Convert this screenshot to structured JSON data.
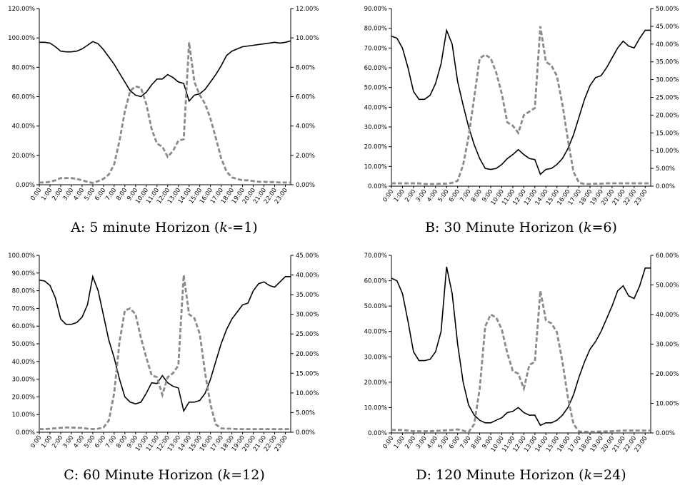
{
  "hours": [
    "0:00",
    "1:00",
    "2:00",
    "3:00",
    "4:00",
    "5:00",
    "6:00",
    "7:00",
    "8:00",
    "9:00",
    "10:00",
    "11:00",
    "12:00",
    "13:00",
    "14:00",
    "15:00",
    "16:00",
    "17:00",
    "18:00",
    "19:00",
    "20:00",
    "21:00",
    "22:00",
    "23:00"
  ],
  "chart_data": [
    {
      "id": "A",
      "type": "line",
      "caption": {
        "pre": "A: 5 minute Horizon (",
        "k": "k",
        "post": "-=1)"
      },
      "y_left_ticks": [
        "0.00%",
        "20.00%",
        "40.00%",
        "60.00%",
        "80.00%",
        "100.00%",
        "120.00%"
      ],
      "y_right_ticks": [
        "0.00%",
        "2.00%",
        "4.00%",
        "6.00%",
        "8.00%",
        "10.00%",
        "12.00%"
      ],
      "y_left_lim": [
        0,
        120
      ],
      "y_right_lim": [
        0,
        12
      ],
      "series": [
        {
          "style": "solid",
          "axis": "left",
          "x": [
            0,
            0.5,
            1,
            1.5,
            2,
            2.5,
            3,
            3.5,
            4,
            4.5,
            5,
            5.5,
            6,
            6.5,
            7,
            7.5,
            8,
            8.5,
            9,
            9.5,
            10,
            10.5,
            11,
            11.5,
            12,
            12.5,
            13,
            13.5,
            14,
            14.5,
            15,
            15.5,
            16,
            16.5,
            17,
            17.5,
            18,
            18.5,
            19,
            19.5,
            20,
            20.5,
            21,
            21.5,
            22,
            22.5,
            23,
            23.5
          ],
          "y": [
            97,
            97,
            96.5,
            94,
            91,
            90.5,
            90.5,
            91,
            92.5,
            95,
            97.5,
            96,
            92,
            87,
            82,
            76,
            70,
            64,
            61,
            60,
            63,
            68,
            72,
            72,
            75,
            73,
            70,
            69,
            57,
            61,
            62,
            65,
            70,
            75,
            81,
            88,
            91,
            92.5,
            94,
            94.5,
            95,
            95.5,
            96,
            96.5,
            97,
            96.5,
            97,
            98
          ]
        },
        {
          "style": "dashed",
          "axis": "right",
          "x": [
            0,
            0.5,
            1,
            1.5,
            2,
            2.5,
            3,
            3.5,
            4,
            4.5,
            5,
            5.5,
            6,
            6.5,
            7,
            7.5,
            8,
            8.5,
            9,
            9.5,
            10,
            10.5,
            11,
            11.5,
            12,
            12.5,
            13,
            13.5,
            14,
            14.5,
            15,
            15.5,
            16,
            16.5,
            17,
            17.5,
            18,
            18.5,
            19,
            19.5,
            20,
            20.5,
            21,
            21.5,
            22,
            22.5,
            23,
            23.5
          ],
          "y": [
            0.15,
            0.15,
            0.2,
            0.3,
            0.45,
            0.45,
            0.45,
            0.4,
            0.3,
            0.2,
            0.12,
            0.25,
            0.4,
            0.7,
            1.4,
            3,
            5,
            6.4,
            6.7,
            6.6,
            5.5,
            3.8,
            2.8,
            2.6,
            1.9,
            2.3,
            3,
            3.1,
            9.7,
            7,
            6.1,
            5.5,
            4.5,
            3.2,
            1.8,
            0.9,
            0.5,
            0.4,
            0.3,
            0.3,
            0.25,
            0.2,
            0.2,
            0.18,
            0.18,
            0.15,
            0.15,
            0.15
          ]
        }
      ]
    },
    {
      "id": "B",
      "type": "line",
      "caption": {
        "pre": "B: 30 Minute Horizon (",
        "k": "k",
        "post": "=6)"
      },
      "y_left_ticks": [
        "0.00%",
        "10.00%",
        "20.00%",
        "30.00%",
        "40.00%",
        "50.00%",
        "60.00%",
        "70.00%",
        "80.00%",
        "90.00%"
      ],
      "y_right_ticks": [
        "0.00%",
        "5.00%",
        "10.00%",
        "15.00%",
        "20.00%",
        "25.00%",
        "30.00%",
        "35.00%",
        "40.00%",
        "45.00%",
        "50.00%"
      ],
      "y_left_lim": [
        0,
        90
      ],
      "y_right_lim": [
        0,
        50
      ],
      "series": [
        {
          "style": "solid",
          "axis": "left",
          "x": [
            0,
            0.5,
            1,
            1.5,
            2,
            2.5,
            3,
            3.5,
            4,
            4.5,
            5,
            5.5,
            6,
            6.5,
            7,
            7.5,
            8,
            8.5,
            9,
            9.5,
            10,
            10.5,
            11,
            11.5,
            12,
            12.5,
            13,
            13.5,
            14,
            14.5,
            15,
            15.5,
            16,
            16.5,
            17,
            17.5,
            18,
            18.5,
            19,
            19.5,
            20,
            20.5,
            21,
            21.5,
            22,
            22.5,
            23,
            23.5
          ],
          "y": [
            76,
            75,
            70,
            60,
            48,
            44,
            44,
            46,
            52,
            62,
            79,
            72,
            53,
            41,
            30,
            21,
            14,
            9,
            8.5,
            9,
            11,
            14,
            16,
            18.5,
            16,
            14,
            13.5,
            6,
            8.5,
            9,
            11,
            14,
            19,
            26,
            35,
            44,
            51,
            55,
            56,
            60,
            65,
            70,
            73.5,
            71,
            70,
            75,
            79,
            79
          ]
        },
        {
          "style": "dashed",
          "axis": "right",
          "x": [
            0,
            0.5,
            1,
            1.5,
            2,
            2.5,
            3,
            3.5,
            4,
            4.5,
            5,
            5.5,
            6,
            6.5,
            7,
            7.5,
            8,
            8.5,
            9,
            9.5,
            10,
            10.5,
            11,
            11.5,
            12,
            12.5,
            13,
            13.5,
            14,
            14.5,
            15,
            15.5,
            16,
            16.5,
            17,
            17.5,
            18,
            18.5,
            19,
            19.5,
            20,
            20.5,
            21,
            21.5,
            22,
            22.5,
            23,
            23.5
          ],
          "y": [
            0.8,
            0.8,
            0.8,
            0.8,
            0.8,
            0.8,
            0.6,
            0.6,
            0.6,
            0.7,
            0.7,
            0.9,
            1.5,
            6,
            14,
            25,
            36,
            37,
            36,
            32,
            26,
            18,
            17,
            15,
            20,
            21,
            22,
            45,
            35,
            34,
            31,
            23,
            13,
            4,
            1,
            0.6,
            0.6,
            0.7,
            0.7,
            0.8,
            0.8,
            0.8,
            0.8,
            0.8,
            0.8,
            0.8,
            0.8,
            0.8
          ]
        }
      ]
    },
    {
      "id": "C",
      "type": "line",
      "caption": {
        "pre": "C: 60 Minute Horizon (",
        "k": "k",
        "post": "=12)"
      },
      "y_left_ticks": [
        "0.00%",
        "10.00%",
        "20.00%",
        "30.00%",
        "40.00%",
        "50.00%",
        "60.00%",
        "70.00%",
        "80.00%",
        "90.00%",
        "100.00%"
      ],
      "y_right_ticks": [
        "0.00%",
        "5.00%",
        "10.00%",
        "15.00%",
        "20.00%",
        "25.00%",
        "30.00%",
        "35.00%",
        "40.00%",
        "45.00%"
      ],
      "y_left_lim": [
        0,
        100
      ],
      "y_right_lim": [
        0,
        45
      ],
      "series": [
        {
          "style": "solid",
          "axis": "left",
          "x": [
            0,
            0.5,
            1,
            1.5,
            2,
            2.5,
            3,
            3.5,
            4,
            4.5,
            5,
            5.5,
            6,
            6.5,
            7,
            7.5,
            8,
            8.5,
            9,
            9.5,
            10,
            10.5,
            11,
            11.5,
            12,
            12.5,
            13,
            13.5,
            14,
            14.5,
            15,
            15.5,
            16,
            16.5,
            17,
            17.5,
            18,
            18.5,
            19,
            19.5,
            20,
            20.5,
            21,
            21.5,
            22,
            22.5,
            23,
            23.5
          ],
          "y": [
            86,
            85.5,
            83,
            76,
            64,
            61,
            61,
            62,
            65,
            72,
            88,
            80,
            66,
            52,
            42,
            30,
            20,
            17,
            16,
            17,
            22,
            28,
            27.5,
            32,
            28,
            26,
            25,
            12,
            17,
            17,
            18,
            22,
            30,
            40,
            50,
            58,
            64,
            68,
            72,
            73,
            80,
            84,
            85,
            83,
            82,
            85,
            88,
            88
          ]
        },
        {
          "style": "dashed",
          "axis": "right",
          "x": [
            0,
            0.5,
            1,
            1.5,
            2,
            2.5,
            3,
            3.5,
            4,
            4.5,
            5,
            5.5,
            6,
            6.5,
            7,
            7.5,
            8,
            8.5,
            9,
            9.5,
            10,
            10.5,
            11,
            11.5,
            12,
            12.5,
            13,
            13.5,
            14,
            14.5,
            15,
            15.5,
            16,
            16.5,
            17,
            17.5,
            18,
            18.5,
            19,
            19.5,
            20,
            20.5,
            21,
            21.5,
            22,
            22.5,
            23,
            23.5
          ],
          "y": [
            0.8,
            0.8,
            0.9,
            1,
            1.1,
            1.2,
            1.2,
            1.1,
            1.1,
            0.9,
            0.8,
            0.9,
            1.2,
            3,
            10,
            23,
            31,
            31.5,
            30,
            24,
            19,
            14.5,
            14,
            9.5,
            14,
            15,
            17,
            40,
            30,
            29,
            25,
            15,
            7,
            2,
            1,
            0.9,
            0.9,
            0.8,
            0.8,
            0.8,
            0.8,
            0.8,
            0.8,
            0.8,
            0.8,
            0.8,
            0.8,
            0.8
          ]
        }
      ]
    },
    {
      "id": "D",
      "type": "line",
      "caption": {
        "pre": "D: 120 Minute Horizon (",
        "k": "k",
        "post": "=24)"
      },
      "y_left_ticks": [
        "0.00%",
        "10.00%",
        "20.00%",
        "30.00%",
        "40.00%",
        "50.00%",
        "60.00%",
        "70.00%"
      ],
      "y_right_ticks": [
        "0.00%",
        "10.00%",
        "20.00%",
        "30.00%",
        "40.00%",
        "50.00%",
        "60.00%"
      ],
      "y_left_lim": [
        0,
        70
      ],
      "y_right_lim": [
        0,
        60
      ],
      "series": [
        {
          "style": "solid",
          "axis": "left",
          "x": [
            0,
            0.5,
            1,
            1.5,
            2,
            2.5,
            3,
            3.5,
            4,
            4.5,
            5,
            5.5,
            6,
            6.5,
            7,
            7.5,
            8,
            8.5,
            9,
            9.5,
            10,
            10.5,
            11,
            11.5,
            12,
            12.5,
            13,
            13.5,
            14,
            14.5,
            15,
            15.5,
            16,
            16.5,
            17,
            17.5,
            18,
            18.5,
            19,
            19.5,
            20,
            20.5,
            21,
            21.5,
            22,
            22.5,
            23,
            23.5
          ],
          "y": [
            61,
            60,
            55,
            44,
            32,
            28.5,
            28.5,
            29,
            32,
            40,
            65.5,
            55,
            35,
            20,
            11,
            7,
            5,
            4,
            4,
            5,
            6,
            8,
            8.5,
            10,
            8,
            7,
            7,
            3,
            4,
            4,
            5,
            7,
            10,
            15,
            22,
            28,
            33,
            36,
            40,
            45,
            50,
            56,
            58,
            54,
            53,
            58,
            65,
            65
          ]
        },
        {
          "style": "dashed",
          "axis": "right",
          "x": [
            0,
            0.5,
            1,
            1.5,
            2,
            2.5,
            3,
            3.5,
            4,
            4.5,
            5,
            5.5,
            6,
            6.5,
            7,
            7.5,
            8,
            8.5,
            9,
            9.5,
            10,
            10.5,
            11,
            11.5,
            12,
            12.5,
            13,
            13.5,
            14,
            14.5,
            15,
            15.5,
            16,
            16.5,
            17,
            17.5,
            18,
            18.5,
            19,
            19.5,
            20,
            20.5,
            21,
            21.5,
            22,
            22.5,
            23,
            23.5
          ],
          "y": [
            1,
            1,
            1,
            0.8,
            0.6,
            0.6,
            0.6,
            0.6,
            0.7,
            0.8,
            0.9,
            1,
            1.2,
            0.8,
            0.3,
            3,
            15,
            36,
            40,
            39,
            35,
            27,
            21,
            20,
            15,
            23,
            24,
            48,
            38,
            37,
            34,
            24,
            12,
            3,
            0.5,
            0.4,
            0.4,
            0.4,
            0.5,
            0.5,
            0.6,
            0.7,
            0.8,
            0.8,
            0.8,
            0.8,
            0.8,
            0.8
          ]
        }
      ]
    }
  ]
}
